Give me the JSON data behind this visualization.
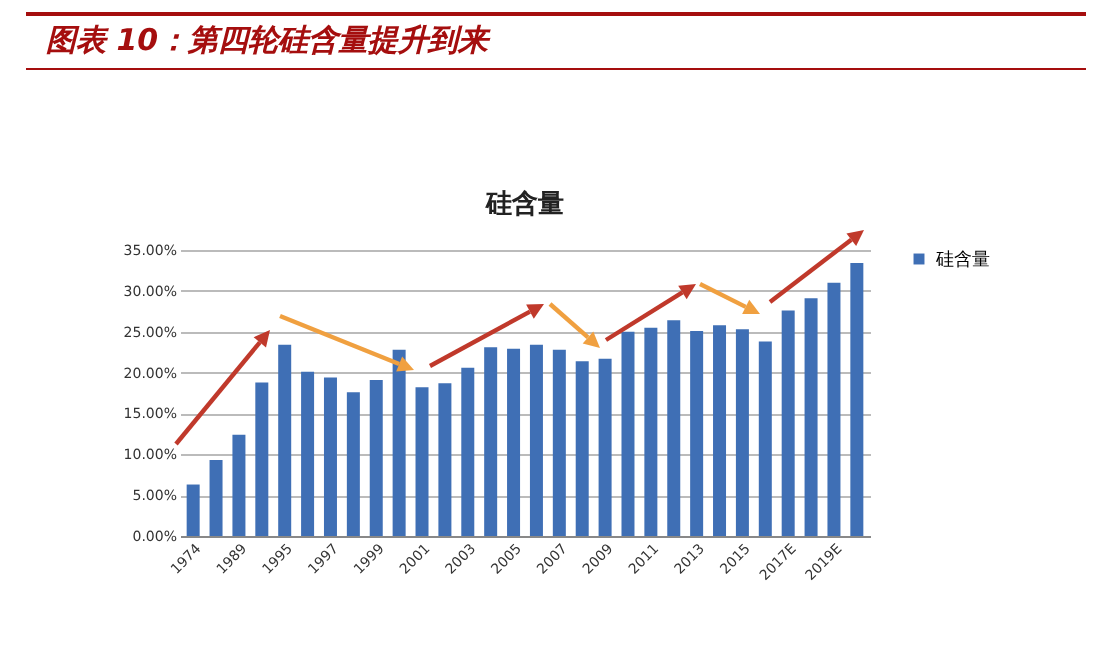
{
  "chart_data": {
    "type": "bar",
    "title": "图表 10：第四轮硅含量提升到来",
    "subtitle": "硅含量",
    "categories": [
      "1974",
      null,
      "1989",
      null,
      "1995",
      null,
      "1997",
      null,
      "1999",
      null,
      "2001",
      null,
      "2003",
      null,
      "2005",
      null,
      "2007",
      null,
      "2009",
      null,
      "2011",
      null,
      "2013",
      null,
      "2015",
      null,
      "2017E",
      null,
      "2019E",
      null
    ],
    "series": [
      {
        "name": "硅含量",
        "color": "#3f6fb5",
        "values": [
          6.3,
          9.3,
          12.4,
          18.8,
          23.4,
          20.1,
          19.4,
          17.6,
          19.1,
          22.8,
          18.2,
          18.7,
          20.6,
          23.1,
          22.9,
          23.4,
          22.8,
          21.4,
          21.7,
          25.0,
          25.5,
          26.4,
          25.1,
          25.8,
          25.3,
          23.8,
          27.6,
          29.1,
          31.0,
          33.4
        ]
      }
    ],
    "ylim": [
      0,
      35
    ],
    "yticks": [
      {
        "value": 0,
        "label": "0.00%"
      },
      {
        "value": 5,
        "label": "5.00%"
      },
      {
        "value": 10,
        "label": "10.00%"
      },
      {
        "value": 15,
        "label": "15.00%"
      },
      {
        "value": 20,
        "label": "20.00%"
      },
      {
        "value": 25,
        "label": "25.00%"
      },
      {
        "value": 30,
        "label": "30.00%"
      },
      {
        "value": 35,
        "label": "35.00%"
      }
    ],
    "grid": "y",
    "legend": "right"
  }
}
